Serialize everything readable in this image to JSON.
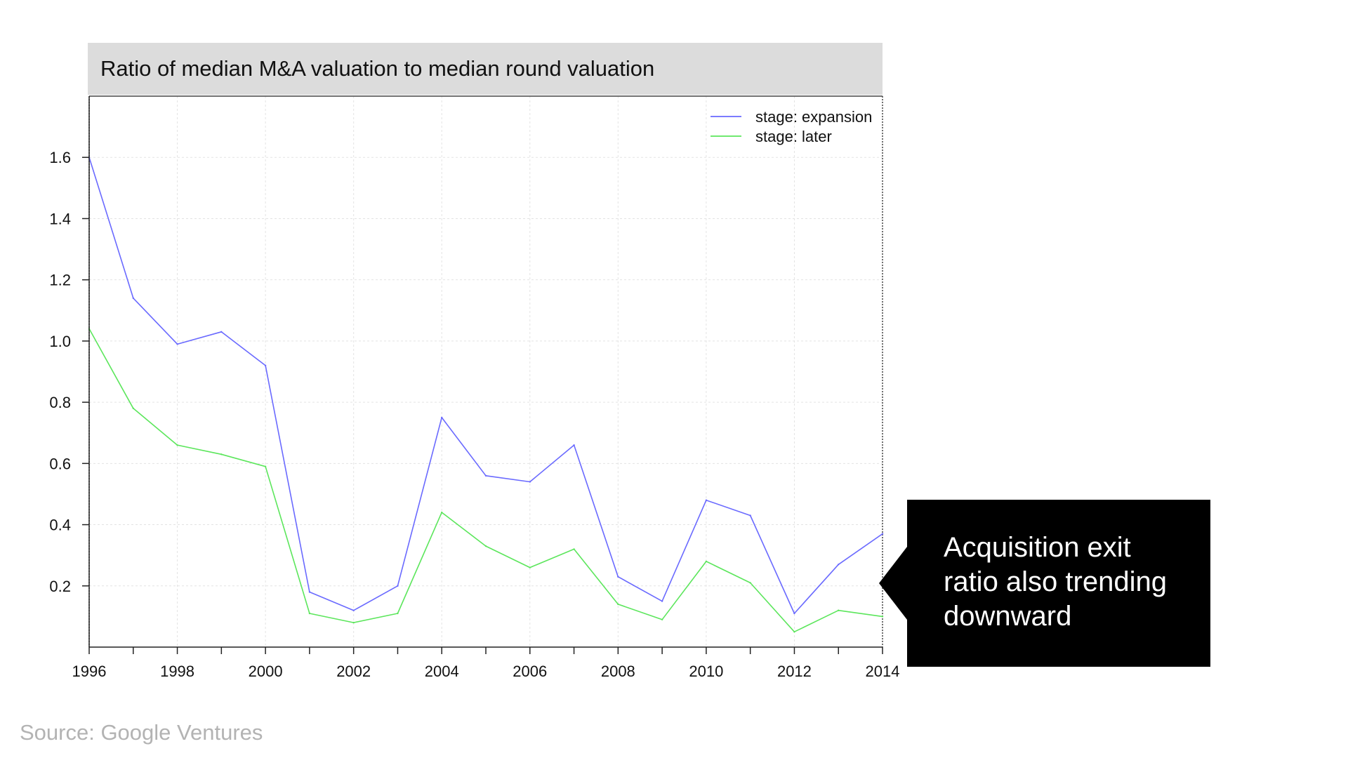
{
  "chart_data": {
    "type": "line",
    "title": "Ratio of median M&A valuation to median round valuation",
    "xlabel": "",
    "ylabel": "",
    "x": [
      1996,
      1997,
      1998,
      1999,
      2000,
      2001,
      2002,
      2003,
      2004,
      2005,
      2006,
      2007,
      2008,
      2009,
      2010,
      2011,
      2012,
      2013,
      2014
    ],
    "xlim": [
      1996,
      2014
    ],
    "ylim": [
      0,
      1.8
    ],
    "x_ticks": [
      1996,
      1998,
      2000,
      2002,
      2004,
      2006,
      2008,
      2010,
      2012,
      2014
    ],
    "x_tick_labels": [
      "1996",
      "1998",
      "2000",
      "2002",
      "2004",
      "2006",
      "2008",
      "2010",
      "2012",
      "2014"
    ],
    "y_ticks": [
      0.2,
      0.4,
      0.6,
      0.8,
      1.0,
      1.2,
      1.4,
      1.6
    ],
    "y_tick_labels": [
      "0.2",
      "0.4",
      "0.6",
      "0.8",
      "1.0",
      "1.2",
      "1.4",
      "1.6"
    ],
    "grid": true,
    "legend_position": "top-right",
    "series": [
      {
        "name": "stage: expansion",
        "color": "#6a6aff",
        "values": [
          1.6,
          1.14,
          0.99,
          1.03,
          0.92,
          0.18,
          0.12,
          0.2,
          0.75,
          0.56,
          0.54,
          0.66,
          0.23,
          0.15,
          0.48,
          0.43,
          0.11,
          0.27,
          0.37
        ]
      },
      {
        "name": "stage: later",
        "color": "#5ce65c",
        "values": [
          1.04,
          0.78,
          0.66,
          0.63,
          0.59,
          0.11,
          0.08,
          0.11,
          0.44,
          0.33,
          0.26,
          0.32,
          0.14,
          0.09,
          0.28,
          0.21,
          0.05,
          0.12,
          0.1
        ]
      }
    ]
  },
  "callout": {
    "text": "Acquisition exit ratio also trending downward"
  },
  "source": {
    "text": "Source: Google Ventures"
  },
  "colors": {
    "callout_background": "#000000",
    "header_background": "#dcdcdc",
    "source_text": "#b3b3b3"
  }
}
